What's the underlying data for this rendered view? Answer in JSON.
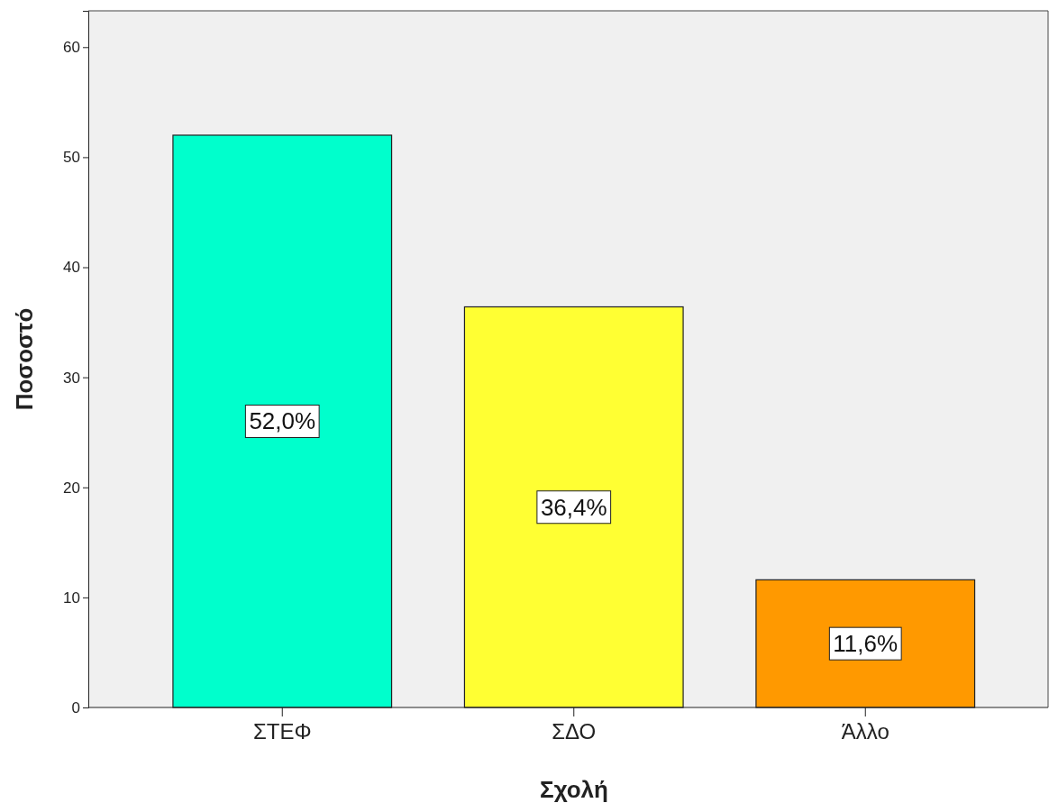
{
  "chart_data": {
    "type": "bar",
    "xlabel": "Σχολή",
    "ylabel": "Ποσοστό",
    "categories": [
      "ΣΤΕΦ",
      "ΣΔΟ",
      "Άλλο"
    ],
    "values": [
      52.0,
      36.4,
      11.6
    ],
    "colors": [
      "#00ffcc",
      "#ffff33",
      "#ff9900"
    ],
    "value_labels": [
      "52,0%",
      "36,4%",
      "11,6%"
    ],
    "ylim": [
      0,
      63.3
    ],
    "yticks": [
      0,
      10,
      20,
      30,
      40,
      50,
      60
    ],
    "grid": false
  }
}
